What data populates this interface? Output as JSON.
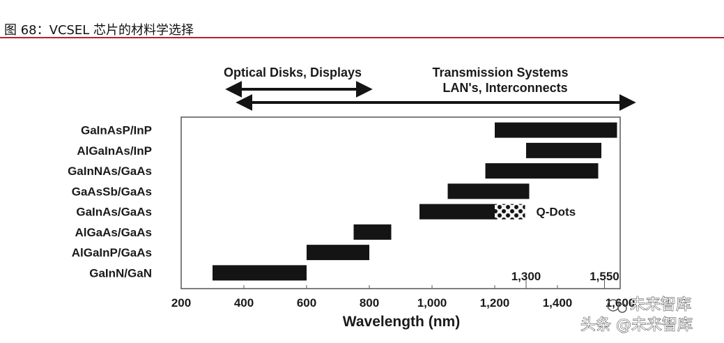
{
  "figure": {
    "title": "图 68：VCSEL 芯片的材料学选择"
  },
  "chart_data": {
    "type": "bar",
    "orientation": "horizontal",
    "title": "",
    "xlabel": "Wavelength (nm)",
    "ylabel": "",
    "xlim": [
      200,
      1600
    ],
    "x_ticks": [
      "200",
      "400",
      "600",
      "800",
      "1,000",
      "1,200",
      "1,400",
      "1,600"
    ],
    "categories": [
      "GaInAsP/InP",
      "AlGaInAs/InP",
      "GaInNAs/GaAs",
      "GaAsSb/GaAs",
      "GaInAs/GaAs",
      "AlGaAs/GaAs",
      "AlGaInP/GaAs",
      "GaInN/GaN"
    ],
    "ranges": [
      {
        "category": "GaInAsP/InP",
        "start": 1200,
        "end": 1590
      },
      {
        "category": "AlGaInAs/InP",
        "start": 1300,
        "end": 1540
      },
      {
        "category": "GaInNAs/GaAs",
        "start": 1170,
        "end": 1530
      },
      {
        "category": "GaAsSb/GaAs",
        "start": 1050,
        "end": 1310
      },
      {
        "category": "GaInAs/GaAs",
        "start": 960,
        "end": 1200
      },
      {
        "category": "AlGaAs/GaAs",
        "start": 750,
        "end": 870
      },
      {
        "category": "AlGaInP/GaAs",
        "start": 600,
        "end": 800
      },
      {
        "category": "GaInN/GaN",
        "start": 300,
        "end": 600
      }
    ],
    "extensions": [
      {
        "category": "GaInAs/GaAs",
        "start": 1200,
        "end": 1310,
        "label": "Q-Dots"
      }
    ],
    "reference_lines": [
      {
        "x": 1300,
        "label": "1,300"
      },
      {
        "x": 1550,
        "label": "1,550"
      }
    ],
    "application_ranges": [
      {
        "label": "Optical Disks, Displays",
        "start": 400,
        "end": 800
      },
      {
        "label": "Transmission Systems",
        "label2": "LAN's, Interconnects",
        "start": 400,
        "end": 1640
      }
    ],
    "colors": {
      "bar": "#141414",
      "arrow": "#141414",
      "frame": "#555555"
    }
  },
  "watermark": {
    "brand": "未来智库",
    "caption": "头条 @未来智库"
  }
}
